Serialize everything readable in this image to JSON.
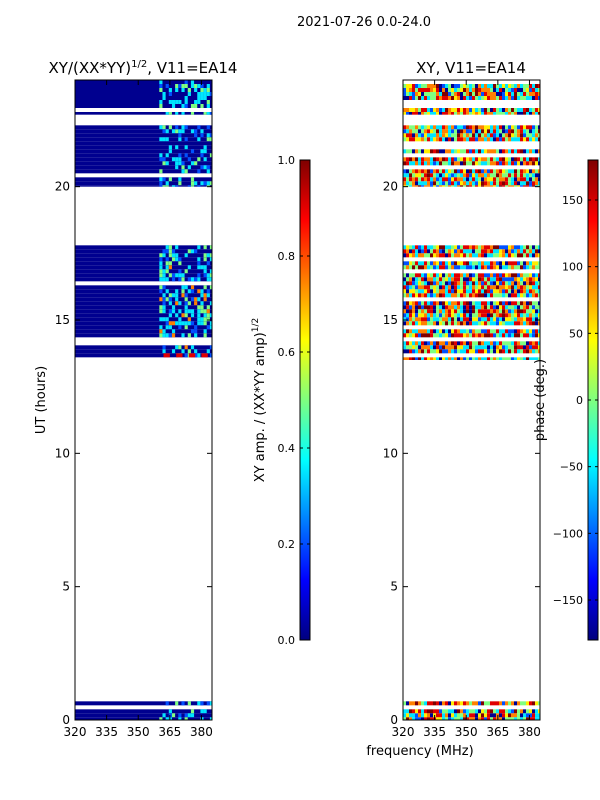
{
  "suptitle": "2021-07-26 0.0-24.0",
  "colors": {
    "jet": [
      "#00007f",
      "#0000ff",
      "#007fff",
      "#00ffff",
      "#7fff7f",
      "#ffff00",
      "#ff7f00",
      "#ff0000",
      "#7f0000"
    ],
    "dark_blue": "#00008f",
    "mid_blue": "#0050ff",
    "cyan": "#00e5ff",
    "light_green": "#80ff80",
    "yellow": "#ffee00",
    "orange": "#ff8000",
    "red": "#e00000",
    "dark_red": "#7f0000"
  },
  "chart_data": [
    {
      "type": "heatmap",
      "title": "XY/(XX*YY)",
      "title_exponent": "1/2",
      "title_suffix": ", V11=EA14",
      "xlabel": "",
      "ylabel": "UT (hours)",
      "xlim": [
        320,
        385
      ],
      "ylim": [
        0,
        24
      ],
      "x_ticks": [
        320,
        335,
        350,
        365,
        380
      ],
      "x_tick_labels": [
        "320",
        "335",
        "350",
        "365",
        "380"
      ],
      "y_ticks": [
        0,
        5,
        10,
        15,
        20
      ],
      "y_tick_labels": [
        "0",
        "5",
        "10",
        "15",
        "20"
      ],
      "data_time_ranges": [
        [
          0.0,
          0.7
        ],
        [
          13.5,
          17.8
        ],
        [
          20.0,
          22.3
        ],
        [
          22.7,
          24.0
        ]
      ],
      "flagged_time_ranges": [
        [
          0.7,
          13.5
        ],
        [
          17.8,
          20.0
        ],
        [
          22.3,
          22.7
        ]
      ],
      "notes": "Mostly low amplitude (dark blue); elevated amplitude channels near 360-385 MHz",
      "colorbar": {
        "label": "XY amp. / (XX*YY amp)",
        "label_exponent": "1/2",
        "range": [
          0.0,
          1.0
        ],
        "ticks": [
          0.0,
          0.2,
          0.4,
          0.6,
          0.8,
          1.0
        ],
        "tick_labels": [
          "0.0",
          "0.2",
          "0.4",
          "0.6",
          "0.8",
          "1.0"
        ]
      }
    },
    {
      "type": "heatmap",
      "title": "XY, V11=EA14",
      "xlabel": "frequency (MHz)",
      "ylabel": "",
      "xlim": [
        320,
        385
      ],
      "ylim": [
        0,
        24
      ],
      "x_ticks": [
        320,
        335,
        350,
        365,
        380
      ],
      "x_tick_labels": [
        "320",
        "335",
        "350",
        "365",
        "380"
      ],
      "y_ticks": [
        0,
        5,
        10,
        15,
        20
      ],
      "y_tick_labels": [
        "0",
        "5",
        "10",
        "15",
        "20"
      ],
      "data_time_ranges": [
        [
          0.0,
          0.7
        ],
        [
          13.5,
          17.8
        ],
        [
          20.0,
          22.3
        ],
        [
          22.7,
          24.0
        ]
      ],
      "flagged_time_ranges": [
        [
          0.7,
          13.5
        ],
        [
          17.8,
          20.0
        ],
        [
          22.3,
          22.7
        ]
      ],
      "notes": "Phase values spanning full range, red/orange and cyan/green dominant",
      "colorbar": {
        "label": "phase (deg.)",
        "range": [
          -180,
          180
        ],
        "ticks": [
          -150,
          -100,
          -50,
          0,
          50,
          100,
          150
        ],
        "tick_labels": [
          "−150",
          "−100",
          "−50",
          "0",
          "50",
          "100",
          "150"
        ]
      }
    }
  ]
}
